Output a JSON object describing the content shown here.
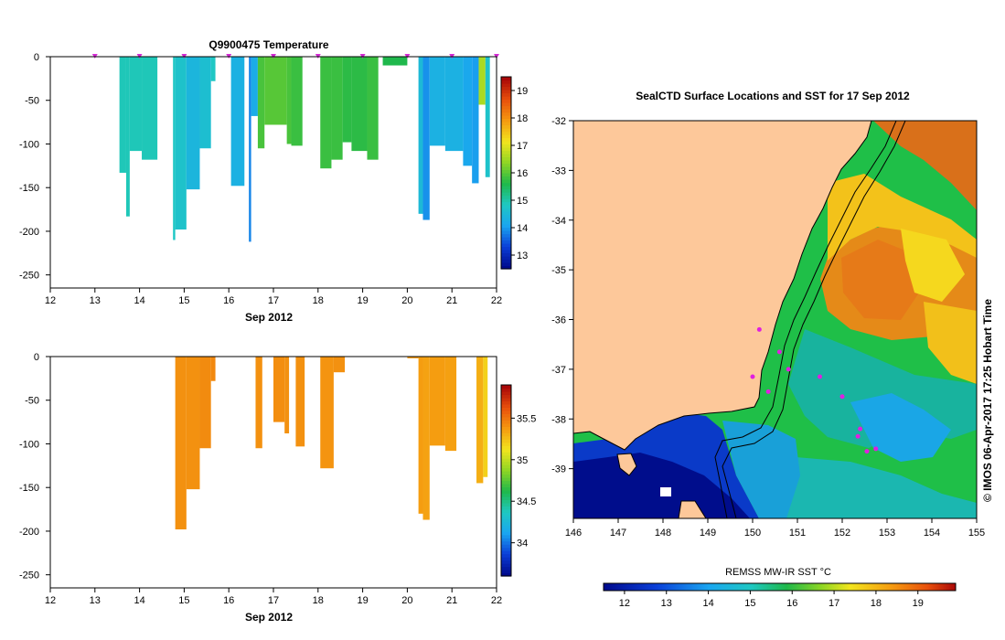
{
  "chart_data": [
    {
      "type": "heatmap",
      "title": "Q9900475  Temperature",
      "xlabel": "Sep 2012",
      "ylabel": "",
      "xlim": [
        12,
        22
      ],
      "ylim": [
        -265,
        0
      ],
      "x_ticks": [
        "12",
        "13",
        "14",
        "15",
        "16",
        "17",
        "18",
        "19",
        "20",
        "21",
        "22"
      ],
      "y_ticks": [
        "0",
        "-50",
        "-100",
        "-150",
        "-200",
        "-250"
      ],
      "colorbar_ticks": [
        "13",
        "14",
        "15",
        "16",
        "17",
        "18",
        "19"
      ],
      "colorbar_range": [
        12.5,
        19.5
      ],
      "surface_markers": [
        13,
        14,
        15,
        16,
        17,
        18,
        19,
        20,
        21,
        22
      ],
      "profiles": [
        {
          "x0": 13.55,
          "x1": 13.7,
          "depth": 133,
          "value": 14.9
        },
        {
          "x0": 13.7,
          "x1": 13.78,
          "depth": 183,
          "value": 14.9
        },
        {
          "x0": 13.78,
          "x1": 14.05,
          "depth": 108,
          "value": 14.9
        },
        {
          "x0": 14.05,
          "x1": 14.4,
          "depth": 118,
          "value": 14.9
        },
        {
          "x0": 14.75,
          "x1": 14.8,
          "depth": 210,
          "value": 14.8
        },
        {
          "x0": 14.8,
          "x1": 15.05,
          "depth": 198,
          "value": 14.7
        },
        {
          "x0": 15.05,
          "x1": 15.35,
          "depth": 152,
          "value": 14.4
        },
        {
          "x0": 15.35,
          "x1": 15.6,
          "depth": 105,
          "value": 14.6
        },
        {
          "x0": 15.6,
          "x1": 15.7,
          "depth": 28,
          "value": 14.8
        },
        {
          "x0": 16.05,
          "x1": 16.35,
          "depth": 148,
          "value": 14.3
        },
        {
          "x0": 16.45,
          "x1": 16.5,
          "depth": 212,
          "value": 13.8
        },
        {
          "x0": 16.5,
          "x1": 16.65,
          "depth": 68,
          "value": 14.2
        },
        {
          "x0": 16.65,
          "x1": 16.8,
          "depth": 105,
          "value": 15.9
        },
        {
          "x0": 16.8,
          "x1": 17.3,
          "depth": 78,
          "value": 16.0
        },
        {
          "x0": 17.3,
          "x1": 17.4,
          "depth": 100,
          "value": 15.9
        },
        {
          "x0": 17.4,
          "x1": 17.65,
          "depth": 102,
          "value": 15.8
        },
        {
          "x0": 18.05,
          "x1": 18.3,
          "depth": 128,
          "value": 15.8
        },
        {
          "x0": 18.3,
          "x1": 18.55,
          "depth": 118,
          "value": 15.8
        },
        {
          "x0": 18.55,
          "x1": 18.75,
          "depth": 98,
          "value": 15.7
        },
        {
          "x0": 18.75,
          "x1": 19.1,
          "depth": 108,
          "value": 15.7
        },
        {
          "x0": 19.1,
          "x1": 19.35,
          "depth": 118,
          "value": 15.8
        },
        {
          "x0": 19.45,
          "x1": 20.0,
          "depth": 10,
          "value": 15.6
        },
        {
          "x0": 20.25,
          "x1": 20.35,
          "depth": 180,
          "value": 14.5
        },
        {
          "x0": 20.35,
          "x1": 20.5,
          "depth": 187,
          "value": 13.9
        },
        {
          "x0": 20.5,
          "x1": 20.85,
          "depth": 102,
          "value": 14.3
        },
        {
          "x0": 20.85,
          "x1": 21.25,
          "depth": 108,
          "value": 14.3
        },
        {
          "x0": 21.25,
          "x1": 21.45,
          "depth": 125,
          "value": 14.1
        },
        {
          "x0": 21.45,
          "x1": 21.6,
          "depth": 145,
          "value": 14.0
        },
        {
          "x0": 21.6,
          "x1": 21.75,
          "depth": 55,
          "value": 16.6
        },
        {
          "x0": 21.75,
          "x1": 21.85,
          "depth": 138,
          "value": 14.7
        }
      ]
    },
    {
      "type": "heatmap",
      "title": "",
      "xlabel": "Sep 2012",
      "ylabel": "",
      "xlim": [
        12,
        22
      ],
      "ylim": [
        -265,
        0
      ],
      "x_ticks": [
        "12",
        "13",
        "14",
        "15",
        "16",
        "17",
        "18",
        "19",
        "20",
        "21",
        "22"
      ],
      "y_ticks": [
        "0",
        "-50",
        "-100",
        "-150",
        "-200",
        "-250"
      ],
      "colorbar_ticks": [
        "34",
        "34.5",
        "35",
        "35.5"
      ],
      "colorbar_range": [
        33.6,
        35.9
      ],
      "profiles": [
        {
          "x0": 14.8,
          "x1": 15.05,
          "depth": 198,
          "value": 35.42
        },
        {
          "x0": 15.05,
          "x1": 15.35,
          "depth": 152,
          "value": 35.42
        },
        {
          "x0": 15.35,
          "x1": 15.6,
          "depth": 105,
          "value": 35.44
        },
        {
          "x0": 15.6,
          "x1": 15.7,
          "depth": 28,
          "value": 35.45
        },
        {
          "x0": 16.6,
          "x1": 16.75,
          "depth": 105,
          "value": 35.42
        },
        {
          "x0": 17.0,
          "x1": 17.25,
          "depth": 75,
          "value": 35.43
        },
        {
          "x0": 17.25,
          "x1": 17.35,
          "depth": 88,
          "value": 35.42
        },
        {
          "x0": 17.5,
          "x1": 17.7,
          "depth": 103,
          "value": 35.42
        },
        {
          "x0": 18.05,
          "x1": 18.35,
          "depth": 128,
          "value": 35.41
        },
        {
          "x0": 18.35,
          "x1": 18.6,
          "depth": 18,
          "value": 35.42
        },
        {
          "x0": 20.0,
          "x1": 20.25,
          "depth": 2,
          "value": 35.4
        },
        {
          "x0": 20.25,
          "x1": 20.35,
          "depth": 180,
          "value": 35.38
        },
        {
          "x0": 20.35,
          "x1": 20.5,
          "depth": 187,
          "value": 35.36
        },
        {
          "x0": 20.5,
          "x1": 20.85,
          "depth": 102,
          "value": 35.38
        },
        {
          "x0": 20.85,
          "x1": 21.1,
          "depth": 108,
          "value": 35.37
        },
        {
          "x0": 21.55,
          "x1": 21.7,
          "depth": 145,
          "value": 35.32
        },
        {
          "x0": 21.7,
          "x1": 21.8,
          "depth": 138,
          "value": 35.2
        }
      ]
    },
    {
      "type": "heatmap",
      "title": "SealCTD Surface Locations and SST for 17 Sep 2012",
      "xlabel": "",
      "ylabel": "",
      "xlim": [
        146.0,
        155.0
      ],
      "ylim": [
        -40.0,
        -32.0
      ],
      "x_ticks": [
        "146",
        "147",
        "148",
        "149",
        "150",
        "151",
        "152",
        "153",
        "154",
        "155"
      ],
      "y_ticks": [
        "-32",
        "-33",
        "-34",
        "-35",
        "-36",
        "-37",
        "-38",
        "-39"
      ],
      "colorbar_label": "REMSS MW-IR SST °C",
      "colorbar_ticks": [
        "12",
        "13",
        "14",
        "15",
        "16",
        "17",
        "18",
        "19"
      ],
      "colorbar_range": [
        11.5,
        19.9
      ],
      "side_text": "© IMOS 06-Apr-2017 17:25 Hobart Time",
      "stations": [
        {
          "lon": 150.15,
          "lat": -36.2
        },
        {
          "lon": 150.0,
          "lat": -37.15
        },
        {
          "lon": 150.35,
          "lat": -37.45
        },
        {
          "lon": 150.6,
          "lat": -36.65
        },
        {
          "lon": 150.8,
          "lat": -37.0
        },
        {
          "lon": 151.5,
          "lat": -37.15
        },
        {
          "lon": 152.0,
          "lat": -37.55
        },
        {
          "lon": 152.4,
          "lat": -38.2
        },
        {
          "lon": 152.35,
          "lat": -38.35
        },
        {
          "lon": 152.55,
          "lat": -38.65
        },
        {
          "lon": 152.75,
          "lat": -38.6
        }
      ]
    }
  ]
}
